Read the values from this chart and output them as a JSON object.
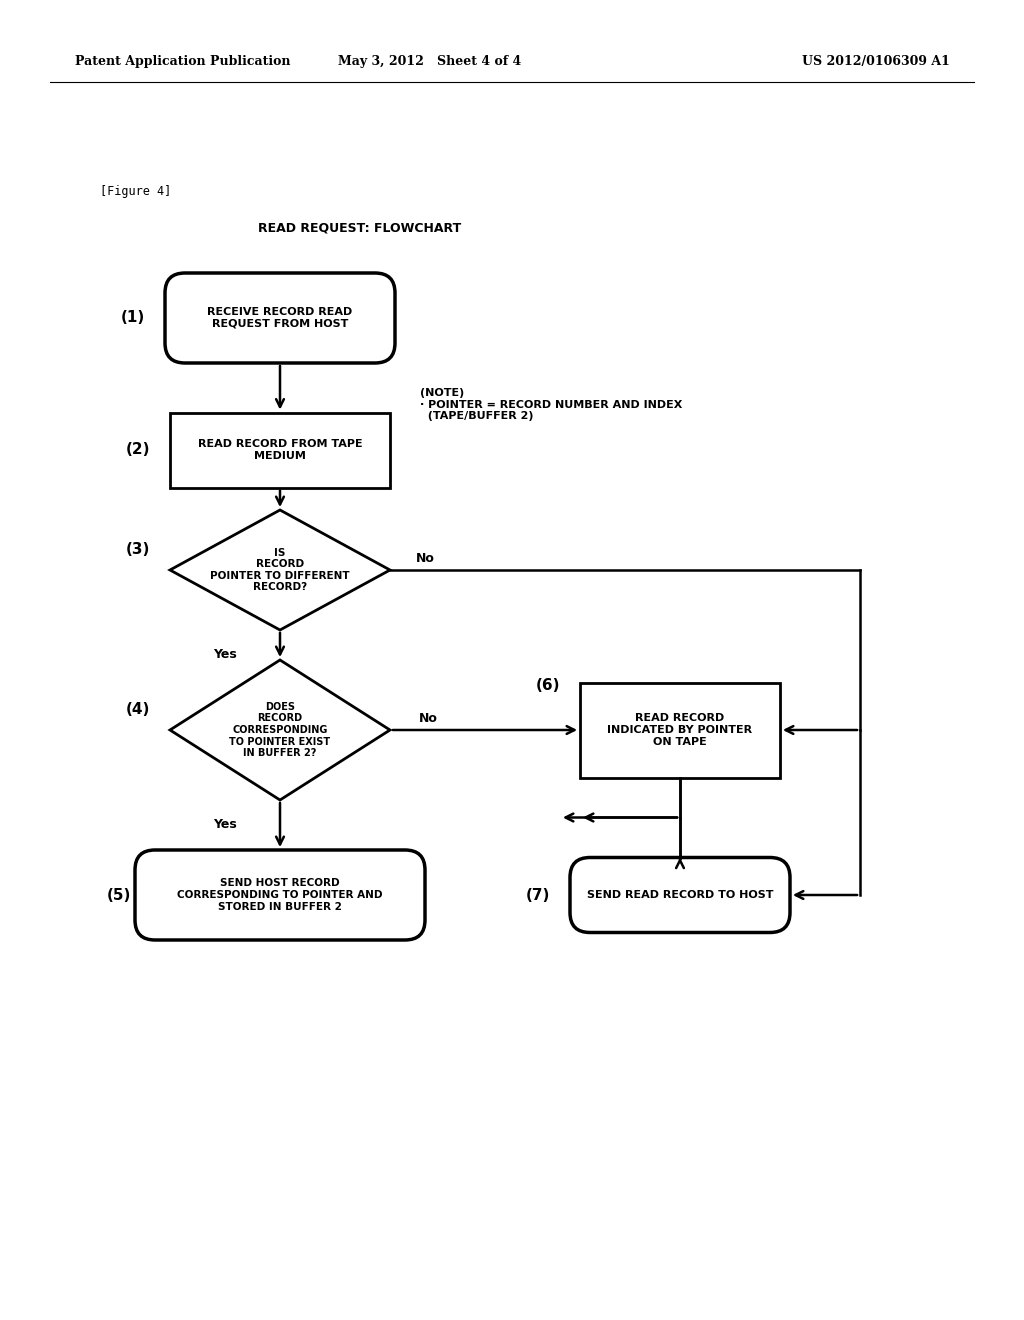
{
  "header_left": "Patent Application Publication",
  "header_mid": "May 3, 2012   Sheet 4 of 4",
  "header_right": "US 2012/0106309 A1",
  "figure_label": "[Figure 4]",
  "chart_title": "READ REQUEST: FLOWCHART",
  "note_line1": "(NOTE)",
  "note_line2": "· POINTER = RECORD NUMBER AND INDEX",
  "note_line3": "  (TAPE/BUFFER 2)",
  "bg_color": "#ffffff",
  "line_color": "#000000",
  "text_color": "#000000"
}
